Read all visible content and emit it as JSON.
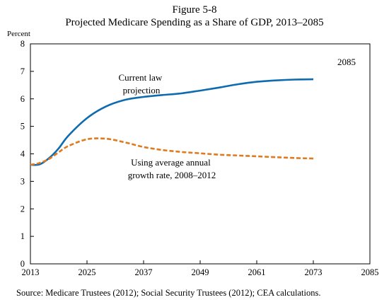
{
  "header": {
    "figure_number": "Figure 5-8",
    "title": "Projected Medicare Spending as a Share of GDP, 2013–2085"
  },
  "source": "Source: Medicare Trustees (2012); Social Security Trustees (2012); CEA calculations.",
  "colors": {
    "current_law": "#0e6bb0",
    "average_growth": "#e07a1f"
  },
  "chart_data": {
    "type": "line",
    "title": "Projected Medicare Spending as a Share of GDP, 2013–2085",
    "ylabel": "Percent",
    "xlabel": "",
    "xlim": [
      2013,
      2085
    ],
    "ylim": [
      0,
      8
    ],
    "xticks": [
      2013,
      2025,
      2037,
      2049,
      2061,
      2073,
      2085
    ],
    "yticks": [
      0,
      1,
      2,
      3,
      4,
      5,
      6,
      7,
      8
    ],
    "grid": false,
    "end_label": "2085",
    "series": [
      {
        "name": "Current law projection",
        "style": "solid",
        "color": "#0e6bb0",
        "points": [
          [
            2013,
            3.6
          ],
          [
            2015,
            3.62
          ],
          [
            2017,
            3.85
          ],
          [
            2019,
            4.2
          ],
          [
            2021,
            4.65
          ],
          [
            2025,
            5.3
          ],
          [
            2029,
            5.72
          ],
          [
            2033,
            5.96
          ],
          [
            2037,
            6.07
          ],
          [
            2041,
            6.14
          ],
          [
            2045,
            6.2
          ],
          [
            2049,
            6.3
          ],
          [
            2053,
            6.41
          ],
          [
            2057,
            6.53
          ],
          [
            2061,
            6.62
          ],
          [
            2065,
            6.67
          ],
          [
            2069,
            6.7
          ],
          [
            2073,
            6.71
          ]
        ]
      },
      {
        "name": "Using average annual growth rate, 2008–2012",
        "style": "dashed",
        "color": "#e07a1f",
        "points": [
          [
            2013,
            3.6
          ],
          [
            2015,
            3.67
          ],
          [
            2017,
            3.82
          ],
          [
            2019,
            4.06
          ],
          [
            2021,
            4.28
          ],
          [
            2025,
            4.53
          ],
          [
            2029,
            4.55
          ],
          [
            2033,
            4.42
          ],
          [
            2037,
            4.25
          ],
          [
            2041,
            4.14
          ],
          [
            2045,
            4.07
          ],
          [
            2049,
            4.02
          ],
          [
            2053,
            3.97
          ],
          [
            2057,
            3.94
          ],
          [
            2061,
            3.91
          ],
          [
            2065,
            3.88
          ],
          [
            2069,
            3.85
          ],
          [
            2073,
            3.83
          ]
        ]
      }
    ],
    "annotations": [
      {
        "lines": [
          "Current law",
          "projection"
        ],
        "series": 0
      },
      {
        "lines": [
          "Using average annual",
          "growth rate, 2008–2012"
        ],
        "series": 1
      }
    ]
  }
}
